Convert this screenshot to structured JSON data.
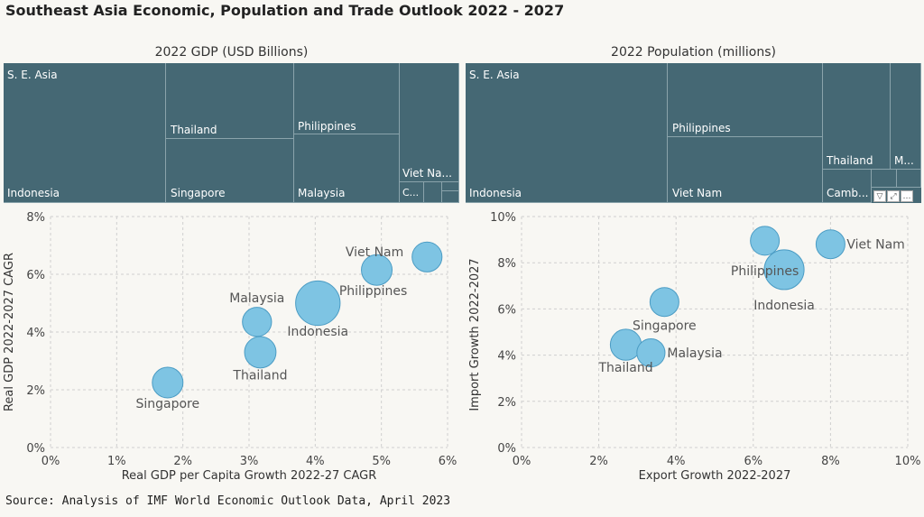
{
  "title": "Southeast Asia Economic, Population and Trade Outlook 2022 - 2027",
  "source": "Source: Analysis of IMF World Economic Outlook Data, April 2023",
  "colors": {
    "tile": "#456874",
    "bubble": "#7ec4e3",
    "bubble_stroke": "#4b9cc4",
    "grid": "#cfcfcf"
  },
  "treemap_gdp": {
    "title": "2022 GDP (USD Billions)",
    "root_label": "S. E. Asia",
    "tiles": [
      "Indonesia",
      "Thailand",
      "Singapore",
      "Philippines",
      "Malaysia",
      "Viet Na...",
      "C..."
    ]
  },
  "treemap_pop": {
    "title": "2022 Population (millions)",
    "root_label": "S. E. Asia",
    "tiles": [
      "Indonesia",
      "Philippines",
      "Viet Nam",
      "Thailand",
      "M...",
      "Camb..."
    ]
  },
  "toolbar": {
    "filter_icon": "filter-icon",
    "expand_icon": "expand-icon",
    "more_icon": "more-icon"
  },
  "chart_data": [
    {
      "type": "scatter",
      "title": "",
      "xlabel": "Real GDP per Capita Growth 2022-27 CAGR",
      "ylabel": "Real GDP 2022-2027 CAGR",
      "xlim": [
        0,
        6
      ],
      "ylim": [
        0,
        8
      ],
      "xticks": [
        "0%",
        "1%",
        "2%",
        "3%",
        "4%",
        "5%",
        "6%"
      ],
      "yticks": [
        "0%",
        "2%",
        "4%",
        "6%",
        "8%"
      ],
      "grid": true,
      "points": [
        {
          "label": "Singapore",
          "x": 1.77,
          "y": 2.25,
          "size": 1.0
        },
        {
          "label": "Thailand",
          "x": 3.17,
          "y": 3.3,
          "size": 1.05
        },
        {
          "label": "Malaysia",
          "x": 3.12,
          "y": 4.35,
          "size": 0.9
        },
        {
          "label": "Indonesia",
          "x": 4.04,
          "y": 5.0,
          "size": 2.1
        },
        {
          "label": "Philippines",
          "x": 4.93,
          "y": 6.15,
          "size": 1.0
        },
        {
          "label": "Viet Nam",
          "x": 5.69,
          "y": 6.6,
          "size": 0.95
        }
      ]
    },
    {
      "type": "scatter",
      "title": "",
      "xlabel": "Export Growth 2022-2027",
      "ylabel": "Import Growth 2022-2027",
      "xlim": [
        0,
        10
      ],
      "ylim": [
        0,
        10
      ],
      "xticks": [
        "0%",
        "2%",
        "4%",
        "6%",
        "8%",
        "10%"
      ],
      "yticks": [
        "0%",
        "2%",
        "4%",
        "6%",
        "8%",
        "10%"
      ],
      "grid": true,
      "points": [
        {
          "label": "Thailand",
          "x": 2.7,
          "y": 4.45,
          "size": 1.15
        },
        {
          "label": "Malaysia",
          "x": 3.35,
          "y": 4.1,
          "size": 0.95
        },
        {
          "label": "Singapore",
          "x": 3.7,
          "y": 6.3,
          "size": 1.0
        },
        {
          "label": "Philippines",
          "x": 6.3,
          "y": 8.95,
          "size": 1.0
        },
        {
          "label": "Indonesia",
          "x": 6.8,
          "y": 7.7,
          "size": 1.9
        },
        {
          "label": "Viet Nam",
          "x": 8.0,
          "y": 8.8,
          "size": 1.0
        }
      ]
    }
  ]
}
